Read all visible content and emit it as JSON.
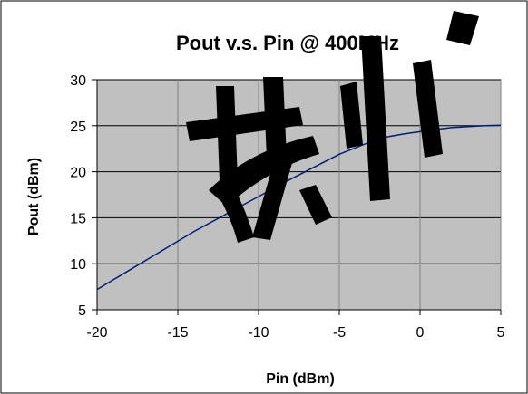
{
  "chart_data": {
    "type": "line",
    "title": "Pout v.s. Pin @ 400MHz",
    "xlabel": "Pin (dBm)",
    "ylabel": "Pout (dBm)",
    "xlim": [
      -20,
      5
    ],
    "ylim": [
      5,
      30
    ],
    "xticks": [
      -20,
      -15,
      -10,
      -5,
      0,
      5
    ],
    "yticks": [
      5,
      10,
      15,
      20,
      25,
      30
    ],
    "x_tick_labels": [
      "-20",
      "-15",
      "-10",
      "-5",
      "0",
      "5"
    ],
    "y_tick_labels": [
      "5",
      "10",
      "15",
      "20",
      "25",
      "30"
    ],
    "grid": "horizontal and vertical",
    "legend": "none",
    "colors": {
      "plot_background": "#c0c0c0",
      "line": "#001f7a",
      "grid": "#000000",
      "watermark": "#000000"
    },
    "series": [
      {
        "x": [
          -20,
          -18,
          -16,
          -14,
          -12,
          -10,
          -8,
          -6,
          -5,
          -4,
          -3,
          -2,
          -1,
          0,
          1,
          2,
          3,
          4,
          5
        ],
        "y": [
          7.2,
          9.3,
          11.4,
          13.5,
          15.4,
          17.3,
          19.2,
          21.0,
          21.9,
          22.6,
          23.3,
          23.8,
          24.1,
          24.35,
          24.6,
          24.8,
          24.9,
          25.0,
          25.05
        ]
      }
    ]
  },
  "watermark": "苏州"
}
